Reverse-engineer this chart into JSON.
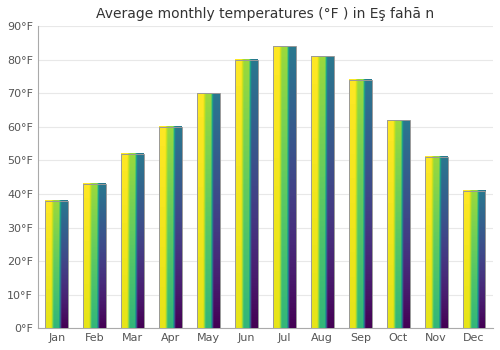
{
  "title": "Average monthly temperatures (°F ) in Eş fahā n",
  "months": [
    "Jan",
    "Feb",
    "Mar",
    "Apr",
    "May",
    "Jun",
    "Jul",
    "Aug",
    "Sep",
    "Oct",
    "Nov",
    "Dec"
  ],
  "values": [
    38,
    43,
    52,
    60,
    70,
    80,
    84,
    81,
    74,
    62,
    51,
    41
  ],
  "bar_color_bottom": "#F5A800",
  "bar_color_top": "#FFD966",
  "bar_edge_color": "#999999",
  "ylim": [
    0,
    90
  ],
  "yticks": [
    0,
    10,
    20,
    30,
    40,
    50,
    60,
    70,
    80,
    90
  ],
  "ytick_labels": [
    "0°F",
    "10°F",
    "20°F",
    "30°F",
    "40°F",
    "50°F",
    "60°F",
    "70°F",
    "80°F",
    "90°F"
  ],
  "background_color": "#ffffff",
  "plot_bg_color": "#ffffff",
  "grid_color": "#e8e8e8",
  "title_fontsize": 10,
  "tick_fontsize": 8,
  "bar_width": 0.6
}
